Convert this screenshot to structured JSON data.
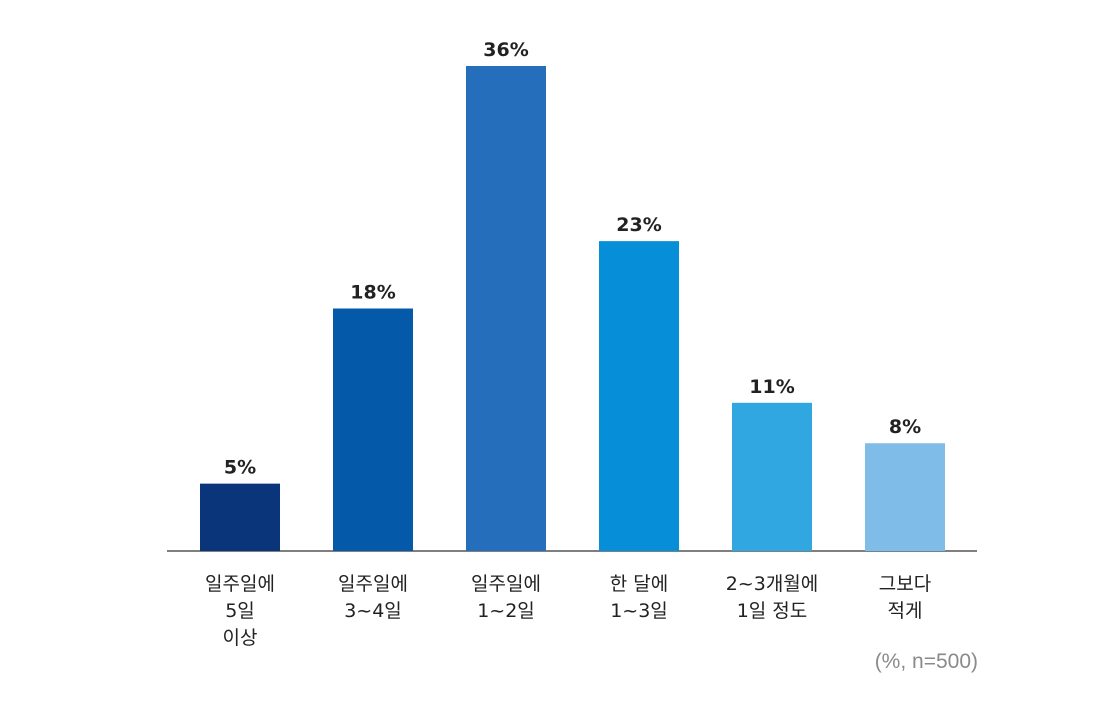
{
  "chart_data": {
    "type": "bar",
    "categories": [
      [
        "일주일에",
        "5일",
        "이상"
      ],
      [
        "일주일에",
        "3~4일"
      ],
      [
        "일주일에",
        "1~2일"
      ],
      [
        "한 달에",
        "1~3일"
      ],
      [
        "2~3개월에",
        "1일 정도"
      ],
      [
        "그보다",
        "적게"
      ]
    ],
    "values": [
      5,
      18,
      36,
      23,
      11,
      8
    ],
    "value_labels": [
      "5%",
      "18%",
      "36%",
      "23%",
      "11%",
      "8%"
    ],
    "colors": [
      "#0b357a",
      "#045aa8",
      "#246ebc",
      "#078ed8",
      "#30a7e0",
      "#7fbde8"
    ],
    "ylim": [
      0,
      36
    ],
    "grid": false,
    "legend": "none"
  },
  "note": "(%, n=500)"
}
